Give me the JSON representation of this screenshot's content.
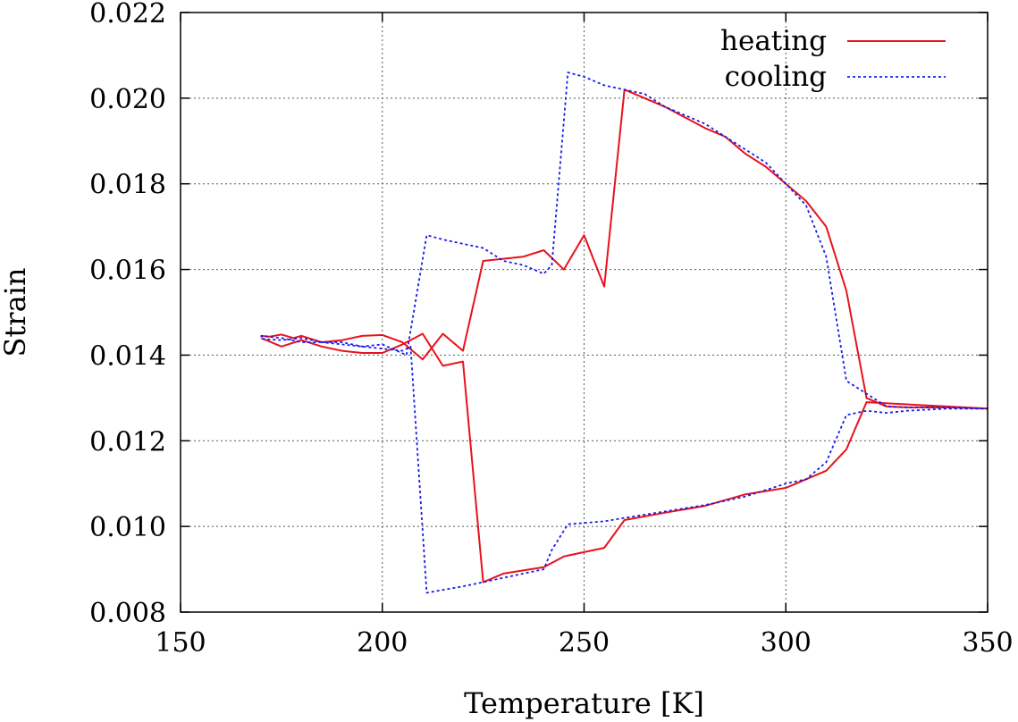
{
  "chart_data": {
    "type": "line",
    "title": "",
    "xlabel": "Temperature [K]",
    "ylabel": "Strain",
    "xlim": [
      150,
      350
    ],
    "ylim": [
      0.008,
      0.022
    ],
    "xticks": [
      150,
      200,
      250,
      300,
      350
    ],
    "xtick_labels": [
      "150",
      "200",
      "250",
      "300",
      "350"
    ],
    "yticks": [
      0.008,
      0.01,
      0.012,
      0.014,
      0.016,
      0.018,
      0.02,
      0.022
    ],
    "ytick_labels": [
      "0.008",
      "0.010",
      "0.012",
      "0.014",
      "0.016",
      "0.018",
      "0.020",
      "0.022"
    ],
    "grid": true,
    "legend_position": "top-right",
    "series": [
      {
        "name": "heating",
        "color": "#e8121b",
        "style": "solid",
        "x": [
          170,
          172,
          175,
          178,
          180,
          185,
          190,
          195,
          200,
          205,
          210,
          215,
          220,
          225,
          230,
          235,
          240,
          245,
          250,
          255,
          260,
          270,
          275,
          280,
          285,
          290,
          295,
          300,
          305,
          310,
          315,
          320,
          325,
          330,
          340,
          350,
          320,
          315,
          310,
          300,
          290,
          280,
          270,
          260,
          255,
          250,
          245,
          240,
          230,
          225,
          220,
          215,
          210,
          205,
          200,
          195,
          190,
          185,
          180,
          175,
          170
        ],
        "y": [
          0.01445,
          0.01443,
          0.01448,
          0.0144,
          0.01445,
          0.0143,
          0.01435,
          0.01445,
          0.01447,
          0.0143,
          0.0139,
          0.0145,
          0.0141,
          0.0162,
          0.01625,
          0.0163,
          0.01645,
          0.016,
          0.0168,
          0.0156,
          0.0202,
          0.0198,
          0.01955,
          0.0193,
          0.0191,
          0.0187,
          0.0184,
          0.018,
          0.0176,
          0.017,
          0.0155,
          0.013,
          0.0128,
          0.01278,
          0.01278,
          0.01275,
          0.0129,
          0.0118,
          0.0113,
          0.0109,
          0.01075,
          0.01048,
          0.01032,
          0.01015,
          0.0095,
          0.0094,
          0.0093,
          0.00905,
          0.0089,
          0.0087,
          0.01385,
          0.01375,
          0.0145,
          0.01425,
          0.01405,
          0.01405,
          0.0141,
          0.0142,
          0.01435,
          0.0142,
          0.0144
        ]
      },
      {
        "name": "cooling",
        "color": "#1a1aeb",
        "style": "dotted",
        "x": [
          350,
          340,
          330,
          325,
          320,
          315,
          310,
          305,
          300,
          295,
          290,
          285,
          280,
          275,
          270,
          265,
          260,
          255,
          250,
          246,
          242,
          240,
          235,
          230,
          225,
          220,
          215,
          211,
          206,
          200,
          195,
          190,
          185,
          180,
          175,
          170,
          170,
          175,
          180,
          185,
          190,
          195,
          200,
          205,
          207,
          211,
          220,
          225,
          230,
          235,
          240,
          242,
          246,
          250,
          255,
          260,
          270,
          280,
          290,
          300,
          305,
          310,
          315,
          320,
          325,
          330,
          340,
          350
        ],
        "y": [
          0.01275,
          0.01278,
          0.01278,
          0.0128,
          0.0131,
          0.0134,
          0.0163,
          0.0175,
          0.018,
          0.0185,
          0.0188,
          0.0191,
          0.0194,
          0.0196,
          0.0198,
          0.0201,
          0.0202,
          0.0203,
          0.0205,
          0.0206,
          0.0161,
          0.0159,
          0.0161,
          0.0162,
          0.0165,
          0.0166,
          0.0167,
          0.0168,
          0.014,
          0.01425,
          0.0142,
          0.0143,
          0.0143,
          0.0143,
          0.0144,
          0.01445,
          0.01438,
          0.01435,
          0.0144,
          0.0143,
          0.01425,
          0.0142,
          0.01415,
          0.0141,
          0.0142,
          0.00845,
          0.0086,
          0.0087,
          0.0088,
          0.0089,
          0.009,
          0.00945,
          0.01005,
          0.01008,
          0.01012,
          0.0102,
          0.01035,
          0.0105,
          0.0107,
          0.011,
          0.0111,
          0.0115,
          0.0126,
          0.0127,
          0.01265,
          0.0127,
          0.01275,
          0.01275
        ]
      }
    ]
  }
}
